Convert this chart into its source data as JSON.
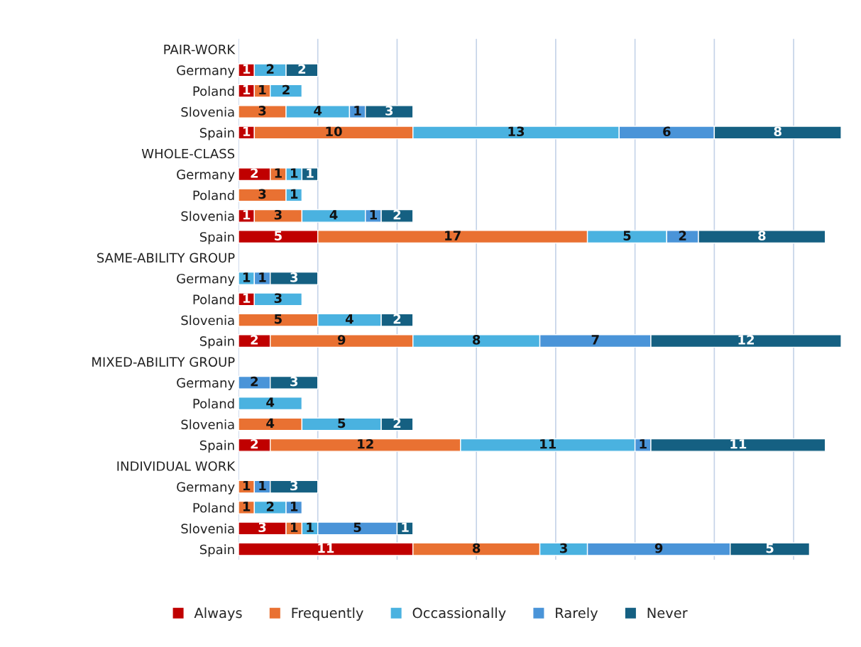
{
  "chart_data": {
    "type": "bar",
    "orientation": "horizontal",
    "stacked": true,
    "data_labels": true,
    "grid": "x",
    "legend": "bottom",
    "tick_labels": "y",
    "xlim": [
      0,
      38
    ],
    "xticks": [
      {
        "value": 0,
        "label": null
      },
      {
        "value": 5,
        "label": null
      },
      {
        "value": 10,
        "label": null
      },
      {
        "value": 15,
        "label": null
      },
      {
        "value": 20,
        "label": null
      },
      {
        "value": 25,
        "label": null
      },
      {
        "value": 30,
        "label": null
      },
      {
        "value": 35,
        "label": null
      }
    ],
    "categories": [
      "PAIR-WORK",
      "Germany",
      "Poland",
      "Slovenia",
      "Spain",
      "WHOLE-CLASS",
      "Germany",
      "Poland",
      "Slovenia",
      "Spain",
      "SAME-ABILITY GROUP",
      "Germany",
      "Poland",
      "Slovenia",
      "Spain",
      "MIXED-ABILITY GROUP",
      "Germany",
      "Poland",
      "Slovenia",
      "Spain",
      "INDIVIDUAL WORK",
      "Germany",
      "Poland",
      "Slovenia",
      "Spain"
    ],
    "series": [
      {
        "name": "Always",
        "color": "#c00000",
        "values": [
          null,
          1,
          1,
          null,
          1,
          null,
          2,
          null,
          1,
          5,
          null,
          null,
          1,
          null,
          2,
          null,
          null,
          null,
          null,
          2,
          null,
          null,
          null,
          3,
          11
        ]
      },
      {
        "name": "Frequently",
        "color": "#e97132",
        "values": [
          null,
          null,
          1,
          3,
          10,
          null,
          1,
          3,
          3,
          17,
          null,
          null,
          null,
          5,
          9,
          null,
          null,
          null,
          4,
          12,
          null,
          1,
          1,
          1,
          8
        ]
      },
      {
        "name": "Occassionally",
        "color": "#4ab2e0",
        "values": [
          null,
          2,
          2,
          4,
          13,
          null,
          1,
          1,
          4,
          5,
          null,
          1,
          3,
          4,
          8,
          null,
          null,
          4,
          5,
          11,
          null,
          null,
          2,
          1,
          3
        ]
      },
      {
        "name": "Rarely",
        "color": "#4a94d8",
        "values": [
          null,
          null,
          null,
          1,
          6,
          null,
          null,
          null,
          1,
          2,
          null,
          1,
          null,
          null,
          7,
          null,
          2,
          null,
          null,
          1,
          null,
          1,
          1,
          5,
          9
        ]
      },
      {
        "name": "Never",
        "color": "#156082",
        "values": [
          null,
          2,
          null,
          3,
          8,
          null,
          1,
          null,
          2,
          8,
          null,
          3,
          null,
          2,
          12,
          null,
          3,
          null,
          2,
          11,
          null,
          3,
          null,
          1,
          5
        ]
      }
    ]
  }
}
